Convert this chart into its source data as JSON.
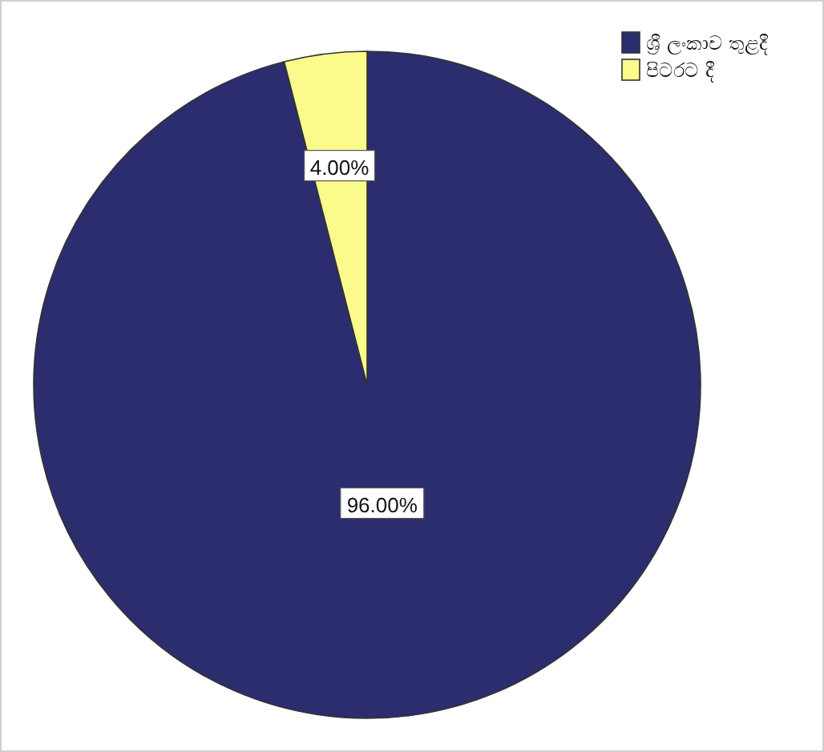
{
  "chart_data": {
    "type": "pie",
    "categories": [
      "ශ්‍රී ලංකාව තුළදී",
      "පිටරට දී"
    ],
    "values": [
      96,
      4
    ],
    "colors": [
      "#2b2d6e",
      "#fbfb8c"
    ],
    "value_labels": [
      "96.00%",
      "4.00%"
    ],
    "legend": "top right"
  }
}
